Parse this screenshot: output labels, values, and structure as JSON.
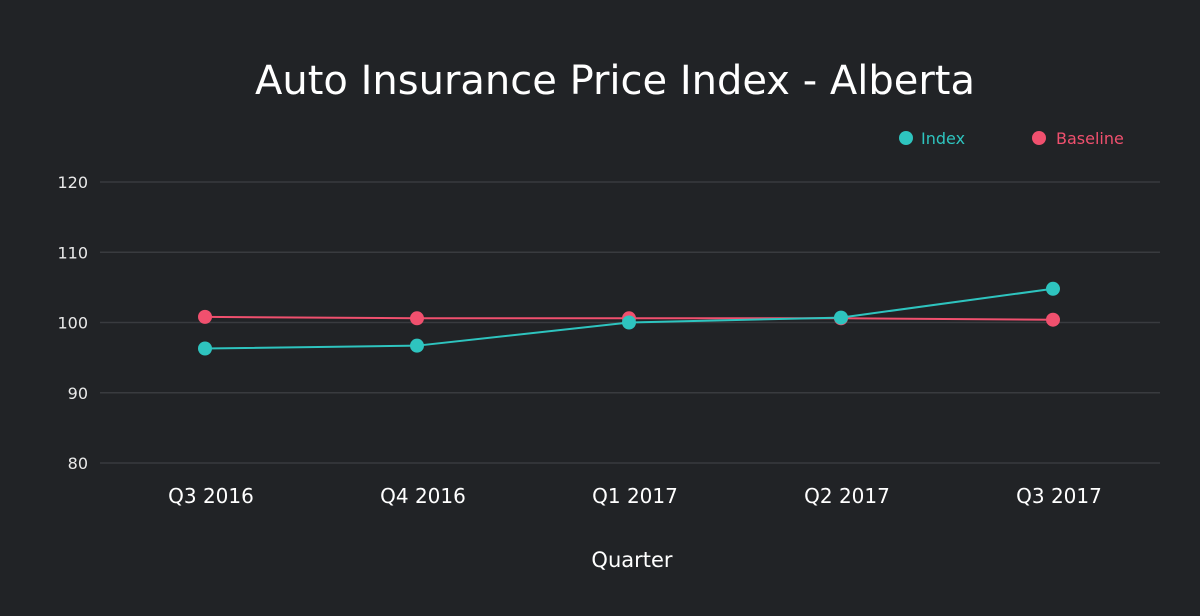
{
  "chart_data": {
    "type": "line",
    "title": "Auto Insurance Price Index - Alberta",
    "xlabel": "Quarter",
    "ylabel": "",
    "categories": [
      "Q3 2016",
      "Q4 2016",
      "Q1 2017",
      "Q2 2017",
      "Q3 2017"
    ],
    "ylim": [
      80,
      120
    ],
    "yticks": [
      80,
      90,
      100,
      110,
      120
    ],
    "grid": true,
    "legend_position": "top-right",
    "series": [
      {
        "name": "Index",
        "color": "#2ec4bf",
        "values": [
          96.3,
          96.7,
          100.0,
          100.7,
          104.8
        ]
      },
      {
        "name": "Baseline",
        "color": "#f0506e",
        "values": [
          100.8,
          100.6,
          100.6,
          100.6,
          100.4
        ]
      }
    ]
  },
  "theme": {
    "background": "#212326",
    "grid_color": "#393b3f",
    "text_color": "#ffffff"
  }
}
